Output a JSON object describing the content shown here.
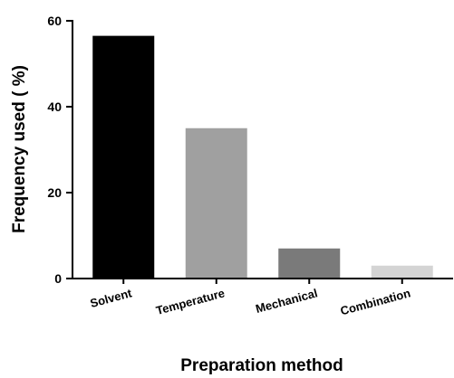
{
  "chart_data": {
    "type": "bar",
    "categories": [
      "Solvent",
      "Temperature",
      "Mechanical",
      "Combination"
    ],
    "values": [
      56.5,
      35,
      7,
      3
    ],
    "colors": [
      "#000000",
      "#a0a0a0",
      "#7a7a7a",
      "#d4d4d4"
    ],
    "ylim": [
      0,
      60
    ],
    "yticks": [
      0,
      20,
      40,
      60
    ],
    "ylabel": "Frequency used ( %)",
    "xlabel": "Preparation method",
    "title": "",
    "grid": false,
    "legend": "none"
  }
}
